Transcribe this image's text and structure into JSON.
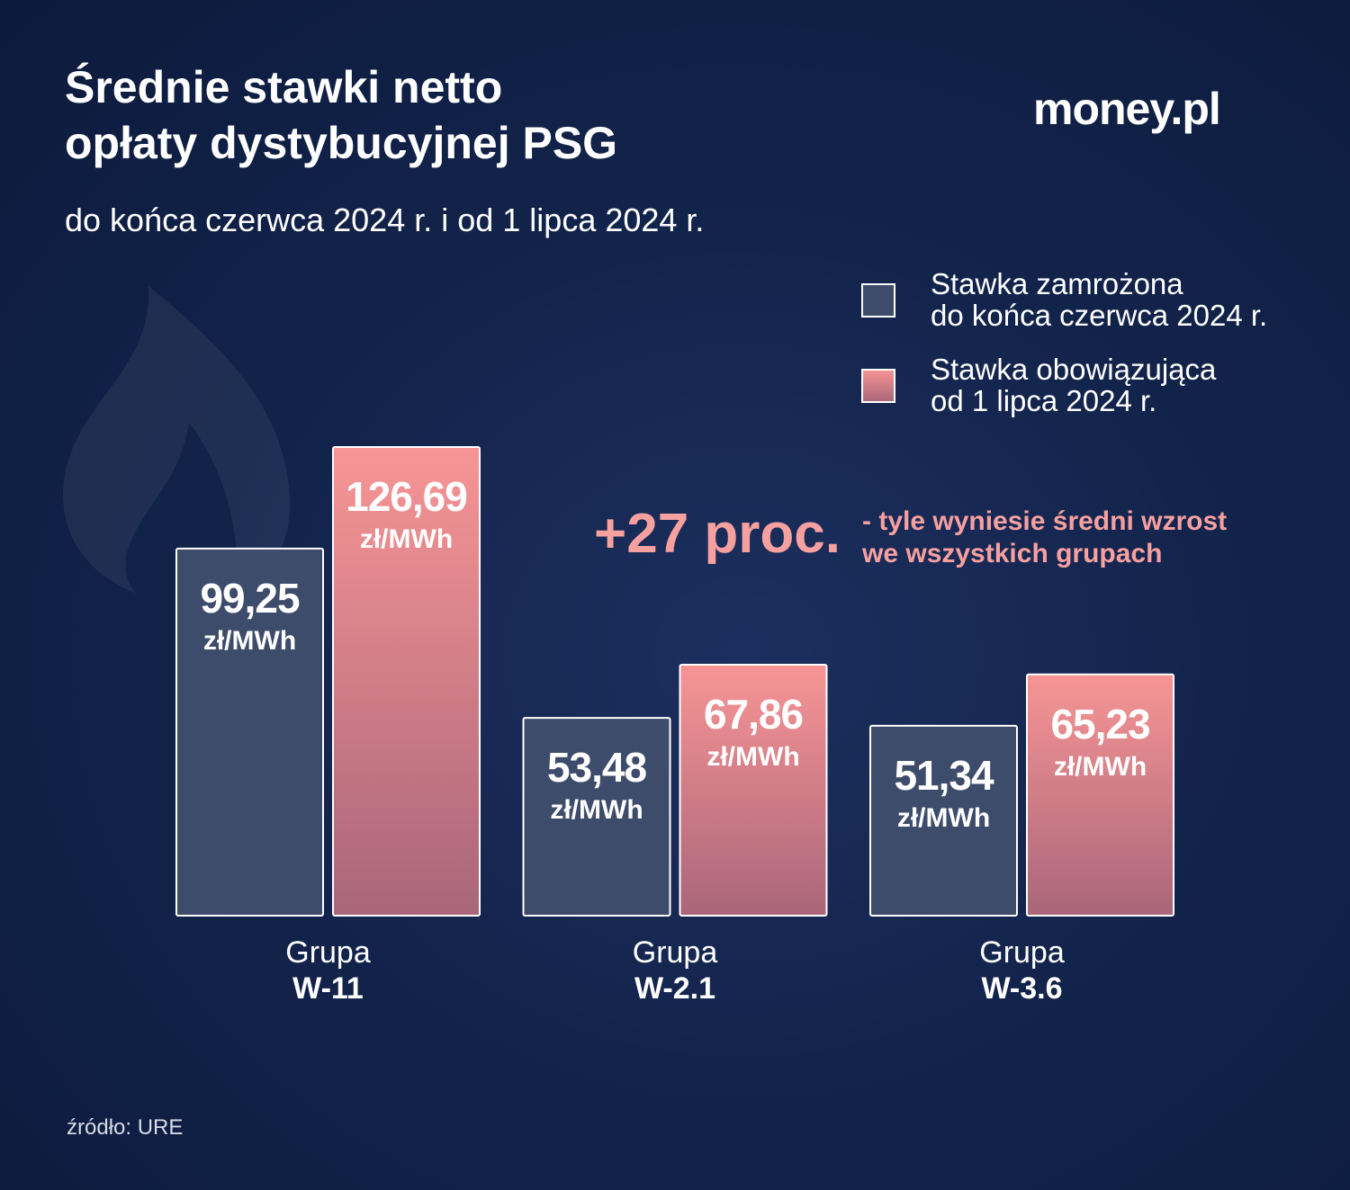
{
  "chart_data": {
    "type": "bar",
    "title": "Średnie stawki netto\nopłaty dystybucyjnej PSG",
    "subtitle": "do końca czerwca 2024 r. i od 1 lipca 2024 r.",
    "brand": "money.pl",
    "categories": [
      [
        "Grupa",
        "W-11"
      ],
      [
        "Grupa",
        "W-2.1"
      ],
      [
        "Grupa",
        "W-3.6"
      ]
    ],
    "unit": "zł/MWh",
    "series": [
      {
        "name": "Stawka zamrożona\ndo końca czerwca 2024 r.",
        "color": "#3e4c6c",
        "values": [
          99.25,
          53.48,
          51.34
        ],
        "value_labels": [
          "99,25",
          "53,48",
          "51,34"
        ]
      },
      {
        "name": "Stawka obowiązująca\nod 1 lipca 2024 r.",
        "color": "#f29292",
        "values": [
          126.69,
          67.86,
          65.23
        ],
        "value_labels": [
          "126,69",
          "67,86",
          "65,23"
        ]
      }
    ],
    "annotation": "+27 proc.",
    "annotation_note": "- tyle wyniesie średni wzrost\n  we wszystkich grupach",
    "source": "źródło: URE"
  }
}
